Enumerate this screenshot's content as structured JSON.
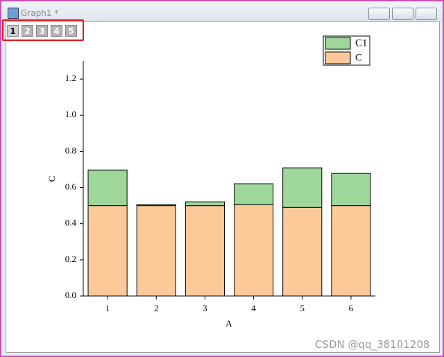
{
  "window": {
    "title": "Graph1 *",
    "layer_tabs": [
      "1",
      "2",
      "3",
      "4",
      "5"
    ]
  },
  "watermark": "CSDN @qq_38101208",
  "chart_data": {
    "type": "stacked-bar",
    "x_label": "A",
    "y_label": "C",
    "categories": [
      "1",
      "2",
      "3",
      "4",
      "5",
      "6"
    ],
    "series": [
      {
        "name": "C",
        "color": "#fdc998",
        "values": [
          0.5,
          0.5,
          0.5,
          0.505,
          0.49,
          0.5
        ]
      },
      {
        "name": "C1",
        "color": "#9fd79b",
        "values": [
          0.197,
          0.006,
          0.021,
          0.116,
          0.219,
          0.178
        ]
      }
    ],
    "ylim": [
      0,
      1.3
    ],
    "yticks": [
      {
        "value": 0,
        "label": "0.0"
      },
      0.2,
      0.4,
      0.6,
      0.8,
      {
        "value": 1,
        "label": "1.0"
      },
      1.2
    ],
    "legend": "top-right"
  }
}
